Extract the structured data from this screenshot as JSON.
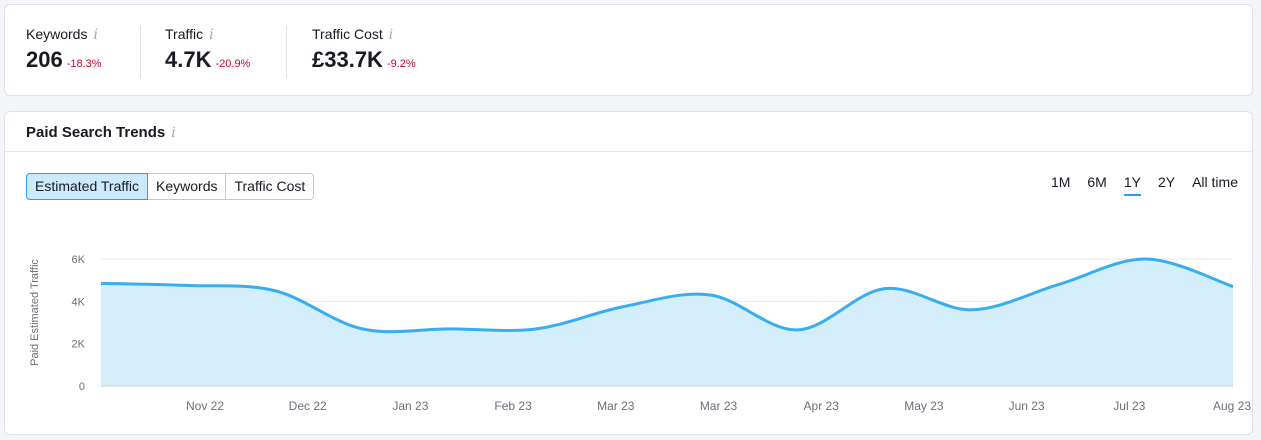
{
  "summary": {
    "metrics": [
      {
        "label": "Keywords",
        "value": "206",
        "delta": "-18.3%"
      },
      {
        "label": "Traffic",
        "value": "4.7K",
        "delta": "-20.9%"
      },
      {
        "label": "Traffic Cost",
        "value": "£33.7K",
        "delta": "-9.2%"
      }
    ],
    "info_icon": "i"
  },
  "trends": {
    "title": "Paid Search Trends",
    "info_icon": "i",
    "tabs": [
      {
        "label": "Estimated Traffic",
        "active": true
      },
      {
        "label": "Keywords",
        "active": false
      },
      {
        "label": "Traffic Cost",
        "active": false
      }
    ],
    "ranges": [
      {
        "label": "1M",
        "active": false
      },
      {
        "label": "6M",
        "active": false
      },
      {
        "label": "1Y",
        "active": true
      },
      {
        "label": "2Y",
        "active": false
      },
      {
        "label": "All time",
        "active": false
      }
    ]
  },
  "colors": {
    "accent": "#2e9cf0",
    "line": "#39adf2",
    "fill": "#d4eefc",
    "negative": "#d1002f"
  },
  "chart_data": {
    "type": "area",
    "ylabel": "Paid Estimated Traffic",
    "ylim": [
      0,
      6000
    ],
    "yticks": [
      0,
      2000,
      4000,
      6000
    ],
    "ytick_labels": [
      "0",
      "2K",
      "4K",
      "6K"
    ],
    "grid": true,
    "x_labels": [
      "Nov 22",
      "Dec 22",
      "Jan 23",
      "Feb 23",
      "Mar 23",
      "Mar 23",
      "Apr 23",
      "May 23",
      "Jun 23",
      "Jul 23",
      "Aug 23"
    ],
    "series": [
      {
        "values": [
          4850,
          4750,
          4500,
          2700,
          2700,
          2700,
          3750,
          4300,
          2650,
          4600,
          3600,
          4800,
          6000,
          4700
        ]
      }
    ]
  }
}
